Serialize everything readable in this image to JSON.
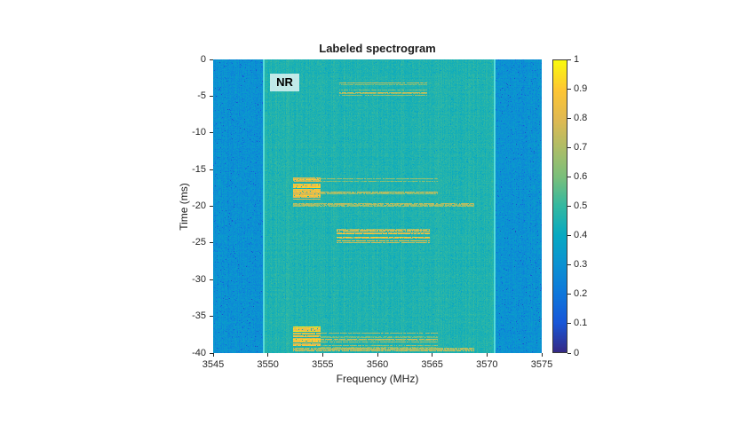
{
  "chart_data": {
    "type": "heatmap",
    "subtype": "spectrogram",
    "title": "Labeled spectrogram",
    "xlabel": "Frequency (MHz)",
    "ylabel": "Time (ms)",
    "x_range": [
      3545,
      3575
    ],
    "y_range": [
      0,
      -40
    ],
    "x_tick_labels": [
      "3545",
      "3550",
      "3555",
      "3560",
      "3565",
      "3570",
      "3575"
    ],
    "y_tick_labels": [
      "0",
      "-5",
      "-10",
      "-15",
      "-20",
      "-25",
      "-30",
      "-35",
      "-40"
    ],
    "grid": false,
    "annotation": {
      "label": "NR",
      "frequency_mhz": 3550.2,
      "time_ms": -1.9
    },
    "band_edges": {
      "frequencies": [
        3549.6,
        3570.7
      ],
      "color": "#5ee3db"
    },
    "background": {
      "out_of_band_level": 0.3,
      "in_band_level": 0.46,
      "noise_amplitude": 0.045
    },
    "bursts": [
      {
        "t_start": -3.2,
        "t_end": -4.9,
        "f_start": 3556.5,
        "f_end": 3564.5,
        "level": 0.7,
        "style": "lines",
        "density": 0.55
      },
      {
        "t_start": -16.0,
        "t_end": -19.1,
        "f_start": 3552.3,
        "f_end": 3554.8,
        "level": 0.85,
        "style": "block",
        "density": 0.85
      },
      {
        "t_start": -16.2,
        "t_end": -19.0,
        "f_start": 3554.8,
        "f_end": 3565.5,
        "level": 0.7,
        "style": "lines",
        "density": 0.3
      },
      {
        "t_start": -19.6,
        "t_end": -20.1,
        "f_start": 3552.3,
        "f_end": 3568.8,
        "level": 0.72,
        "style": "lines",
        "density": 0.9
      },
      {
        "t_start": -23.1,
        "t_end": -25.0,
        "f_start": 3556.3,
        "f_end": 3564.8,
        "level": 0.78,
        "style": "lines",
        "density": 0.65
      },
      {
        "t_start": -36.4,
        "t_end": -39.0,
        "f_start": 3552.3,
        "f_end": 3554.8,
        "level": 0.85,
        "style": "block",
        "density": 0.85
      },
      {
        "t_start": -36.8,
        "t_end": -39.6,
        "f_start": 3554.8,
        "f_end": 3565.5,
        "level": 0.7,
        "style": "lines",
        "density": 0.3
      },
      {
        "t_start": -39.2,
        "t_end": -39.7,
        "f_start": 3552.3,
        "f_end": 3568.8,
        "level": 0.72,
        "style": "lines",
        "density": 0.9
      }
    ],
    "colorbar": {
      "min": 0,
      "max": 1,
      "tick_labels": [
        "0",
        "0.1",
        "0.2",
        "0.3",
        "0.4",
        "0.5",
        "0.6",
        "0.7",
        "0.8",
        "0.9",
        "1"
      ],
      "colormap": "parula",
      "colormap_stops": [
        "#352a87",
        "#1857d8",
        "#0e77db",
        "#0c92d2",
        "#07a9c2",
        "#33b8a1",
        "#7abf7c",
        "#aebd67",
        "#e1b952",
        "#fec634",
        "#f9fa0e"
      ]
    }
  }
}
